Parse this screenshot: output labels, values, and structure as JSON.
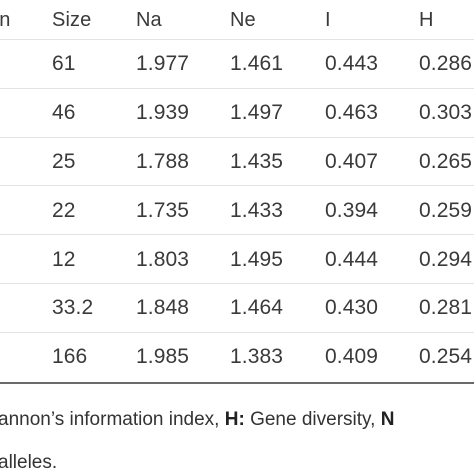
{
  "table": {
    "headers": [
      "on",
      "Size",
      "Na",
      "Ne",
      "I",
      "H"
    ],
    "rows": [
      [
        "61",
        "1.977",
        "1.461",
        "0.443",
        "0.286"
      ],
      [
        "46",
        "1.939",
        "1.497",
        "0.463",
        "0.303"
      ],
      [
        "25",
        "1.788",
        "1.435",
        "0.407",
        "0.265"
      ],
      [
        "22",
        "1.735",
        "1.433",
        "0.394",
        "0.259"
      ],
      [
        "12",
        "1.803",
        "1.495",
        "0.444",
        "0.294"
      ],
      [
        "33.2",
        "1.848",
        "1.464",
        "0.430",
        "0.281"
      ],
      [
        "166",
        "1.985",
        "1.383",
        "0.409",
        "0.254"
      ]
    ]
  },
  "footnote": {
    "line1_prefix": "annon’s information index, ",
    "line1_h_key": "H:",
    "line1_h_text": " Gene diversity, ",
    "line1_tail_key": "N",
    "line2": "alleles."
  }
}
